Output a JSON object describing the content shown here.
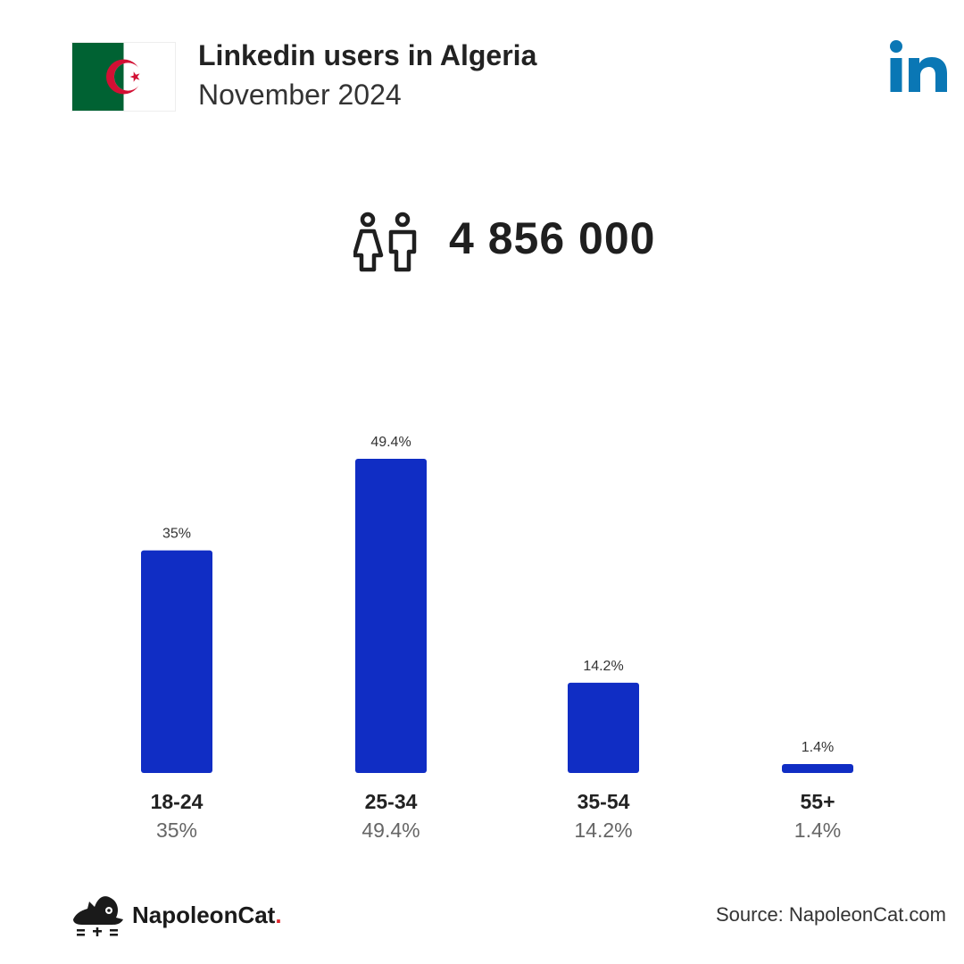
{
  "header": {
    "title": "Linkedin users in Algeria",
    "subtitle": "November 2024"
  },
  "summary": {
    "total_users": "4 856 000",
    "icon": "users-icon"
  },
  "colors": {
    "bar": "#102dc4",
    "linkedin": "#0a77b5",
    "flag_green": "#006233",
    "flag_red": "#d21034"
  },
  "chart_data": {
    "type": "bar",
    "categories": [
      "18-24",
      "25-34",
      "35-54",
      "55+"
    ],
    "values": [
      35,
      49.4,
      14.2,
      1.4
    ],
    "value_labels": [
      "35%",
      "49.4%",
      "14.2%",
      "1.4%"
    ],
    "ylim": [
      0,
      49.4
    ],
    "grid": false,
    "legend": "none"
  },
  "footer": {
    "brand": "NapoleonCat",
    "brand_dot": ".",
    "source": "Source: NapoleonCat.com"
  }
}
